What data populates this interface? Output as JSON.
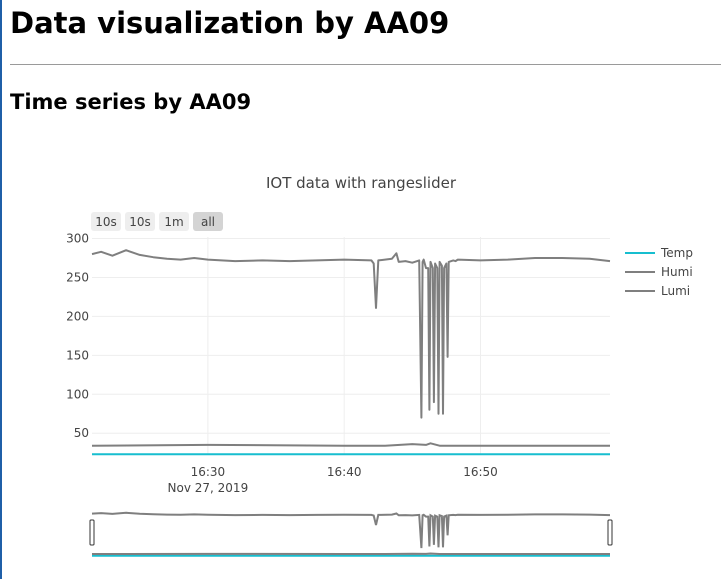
{
  "page": {
    "title": "Data visualization by AA09",
    "section_title": "Time series by AA09"
  },
  "chart_data": {
    "type": "line",
    "title": "IOT data with rangeslider",
    "xlabel": "",
    "ylabel": "",
    "x_range": [
      "2019-11-27 16:21:30",
      "2019-11-27 16:59:30"
    ],
    "x_ticks": [
      "16:30",
      "16:40",
      "16:50"
    ],
    "x_tick_sub": "Nov 27, 2019",
    "ylim": [
      22,
      302
    ],
    "y_ticks": [
      50,
      100,
      150,
      200,
      250,
      300
    ],
    "grid": true,
    "legend_position": "top-right",
    "range_selector": [
      {
        "label": "10s",
        "active": false
      },
      {
        "label": "10s",
        "active": false
      },
      {
        "label": "1m",
        "active": false
      },
      {
        "label": "all",
        "active": true
      }
    ],
    "rangeslider": true,
    "series": [
      {
        "name": "Temp",
        "color": "#17becf",
        "x": [
          "2019-11-27 16:21:30",
          "2019-11-27 16:59:30"
        ],
        "y": [
          23,
          23
        ]
      },
      {
        "name": "Humi",
        "color": "#7f7f7f",
        "x": [
          "2019-11-27 16:21:30",
          "2019-11-27 16:30:00",
          "2019-11-27 16:40:00",
          "2019-11-27 16:43:00",
          "2019-11-27 16:45:00",
          "2019-11-27 16:46:00",
          "2019-11-27 16:46:20",
          "2019-11-27 16:47:00",
          "2019-11-27 16:50:00",
          "2019-11-27 16:59:30"
        ],
        "y": [
          34,
          35,
          34,
          34,
          36,
          35,
          37,
          34,
          34,
          34
        ]
      },
      {
        "name": "Lumi",
        "color": "#7f7f7f",
        "x": [
          "2019-11-27 16:21:30",
          "2019-11-27 16:22:10",
          "2019-11-27 16:23:00",
          "2019-11-27 16:24:00",
          "2019-11-27 16:25:00",
          "2019-11-27 16:26:00",
          "2019-11-27 16:27:00",
          "2019-11-27 16:28:00",
          "2019-11-27 16:29:00",
          "2019-11-27 16:30:00",
          "2019-11-27 16:32:00",
          "2019-11-27 16:34:00",
          "2019-11-27 16:36:00",
          "2019-11-27 16:38:00",
          "2019-11-27 16:40:00",
          "2019-11-27 16:42:00",
          "2019-11-27 16:42:10",
          "2019-11-27 16:42:20",
          "2019-11-27 16:42:30",
          "2019-11-27 16:43:30",
          "2019-11-27 16:43:50",
          "2019-11-27 16:44:00",
          "2019-11-27 16:44:30",
          "2019-11-27 16:45:00",
          "2019-11-27 16:45:30",
          "2019-11-27 16:45:40",
          "2019-11-27 16:45:45",
          "2019-11-27 16:45:50",
          "2019-11-27 16:46:00",
          "2019-11-27 16:46:10",
          "2019-11-27 16:46:15",
          "2019-11-27 16:46:20",
          "2019-11-27 16:46:30",
          "2019-11-27 16:46:35",
          "2019-11-27 16:46:40",
          "2019-11-27 16:46:50",
          "2019-11-27 16:46:55",
          "2019-11-27 16:47:00",
          "2019-11-27 16:47:10",
          "2019-11-27 16:47:15",
          "2019-11-27 16:47:20",
          "2019-11-27 16:47:30",
          "2019-11-27 16:47:35",
          "2019-11-27 16:47:40",
          "2019-11-27 16:48:00",
          "2019-11-27 16:48:10",
          "2019-11-27 16:48:20",
          "2019-11-27 16:50:00",
          "2019-11-27 16:52:00",
          "2019-11-27 16:54:00",
          "2019-11-27 16:56:00",
          "2019-11-27 16:58:00",
          "2019-11-27 16:59:30"
        ],
        "y": [
          280,
          283,
          278,
          285,
          279,
          276,
          274,
          273,
          275,
          273,
          271,
          272,
          271,
          272,
          273,
          272,
          268,
          211,
          272,
          274,
          281,
          270,
          271,
          269,
          272,
          70,
          270,
          273,
          262,
          262,
          80,
          270,
          262,
          90,
          268,
          262,
          75,
          270,
          265,
          75,
          262,
          268,
          148,
          270,
          272,
          271,
          273,
          272,
          273,
          275,
          275,
          274,
          271
        ]
      }
    ]
  }
}
